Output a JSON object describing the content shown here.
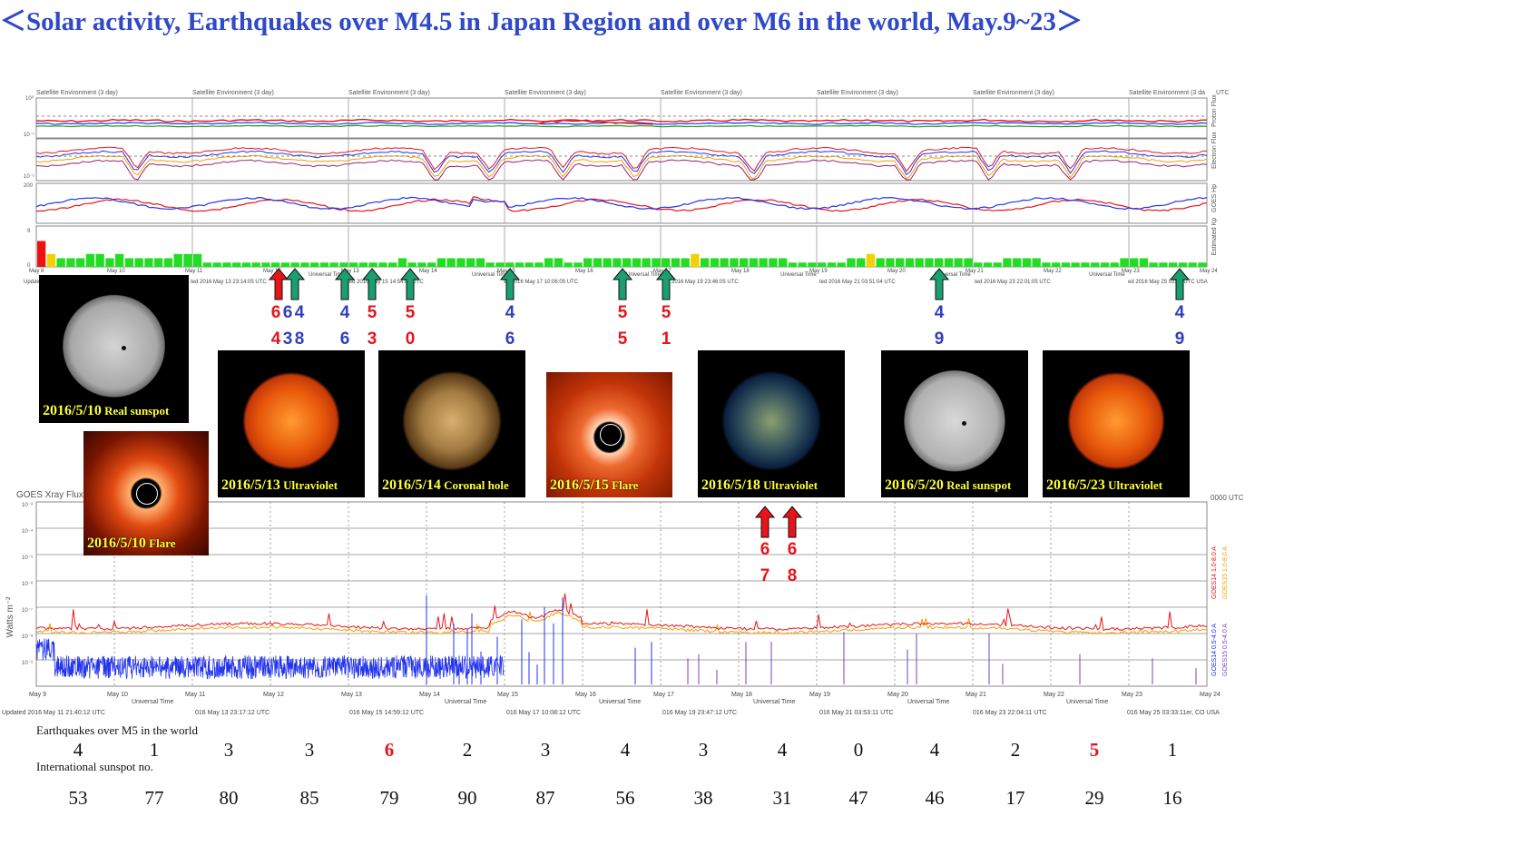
{
  "title": "＜Solar activity, Earthquakes over M4.5 in Japan Region and over M6 in the world, May.9~23＞",
  "colors": {
    "title": "#2f49c8",
    "red": "#e8141a",
    "green_arrow": "#1aa070",
    "kp_green": "#22dd22",
    "kp_yellow": "#f4d000",
    "kp_red": "#ee1111"
  },
  "top_panel": {
    "header_label": "Satellite Environment (3 day)",
    "header_label_last": "Satellite Environment (3 da",
    "header_utc": "UTC",
    "side_labels": [
      "Proton Flux",
      "Electron Flux",
      "GOES Hp",
      "Estimated Kp"
    ],
    "y_ticks": [
      "10⁰",
      "10⁻¹",
      "10⁻¹",
      "200",
      "9",
      "0"
    ],
    "date_ticks": [
      "May 9",
      "May 10",
      "May 11",
      "May 12",
      "May 13",
      "May 14",
      "May 15",
      "May 16",
      "May 17",
      "May 18",
      "May 19",
      "May 20",
      "May 21",
      "May 22",
      "May 23",
      "May 24"
    ],
    "universal_time": "Universal Time",
    "updated": [
      "Updated",
      "ted 2016 May 13 23:14:05 UTC",
      "ted 2016 May 15 14:54:05 UTC",
      "ed 2016 May 17 10:06:05 UTC",
      "ted 2016 May 19 23:46:05 UTC",
      "ted 2016 May 21 03:51:04 UTC",
      "ted 2016 May 23 22:01:05 UTC",
      "ed 2016 May 25 03:33 UTC USA"
    ]
  },
  "chart_data": [
    {
      "type": "bar",
      "name": "Estimated Kp",
      "ylim": [
        0,
        9
      ],
      "values": [
        6,
        3,
        2,
        2,
        2,
        3,
        3,
        2,
        3,
        2,
        2,
        2,
        2,
        2,
        3,
        3,
        3,
        1,
        1,
        1,
        1,
        1,
        1,
        1,
        1,
        1,
        1,
        1,
        1,
        1,
        1,
        1,
        1,
        1,
        1,
        1,
        1,
        2,
        1,
        1,
        1,
        2,
        2,
        2,
        2,
        2,
        1,
        1,
        1,
        1,
        1,
        1,
        2,
        2,
        1,
        1,
        2,
        2,
        2,
        2,
        2,
        2,
        2,
        2,
        2,
        2,
        2,
        3,
        2,
        2,
        2,
        2,
        2,
        2,
        2,
        2,
        2,
        1,
        1,
        1,
        1,
        1,
        1,
        2,
        2,
        3,
        2,
        2,
        2,
        2,
        2,
        2,
        2,
        2,
        2,
        2,
        1,
        1,
        1,
        2,
        2,
        2,
        2,
        1,
        1,
        1,
        1,
        1,
        1,
        1,
        1,
        2,
        2,
        2,
        1,
        1,
        1,
        1,
        1,
        1,
        1,
        2,
        2,
        1,
        1,
        1,
        1,
        2,
        3,
        5,
        2,
        2,
        2,
        2,
        2,
        2,
        2,
        2,
        2,
        1,
        1,
        1,
        1,
        1,
        1,
        1,
        1,
        1,
        1,
        1,
        1,
        2,
        1,
        1,
        1,
        1,
        1,
        1,
        1,
        1,
        1,
        1,
        1,
        1,
        1,
        1,
        1,
        1,
        1,
        1,
        1,
        1,
        1,
        1,
        1,
        1,
        1,
        1,
        1,
        1,
        1,
        1,
        1,
        1,
        1,
        1,
        1,
        1,
        1,
        1,
        1,
        1,
        1,
        1,
        1,
        1,
        1,
        1,
        1,
        1,
        1,
        1,
        1,
        1,
        1,
        1,
        1,
        1,
        1,
        1,
        1,
        1,
        1,
        1,
        1,
        1,
        1,
        1,
        1,
        1,
        1,
        1,
        1,
        1
      ]
    },
    {
      "type": "line",
      "name": "GOES Xray Flux",
      "ylabel": "Watts m⁻²",
      "y_ticks": [
        "10⁻³",
        "10⁻⁴",
        "10⁻⁵",
        "10⁻⁶",
        "10⁻⁷",
        "10⁻⁸",
        "10⁻⁹"
      ],
      "legend": [
        "GOES14 1.0-8.0 A",
        "GOES15 1.0-8.0 A",
        "GOES14 0.5-4.0 A",
        "GOES15 0.5-4.0 A"
      ],
      "series_colors": [
        "#e8141a",
        "#f4a000",
        "#2233ee",
        "#7a3fbf"
      ]
    },
    {
      "type": "table",
      "rows": [
        {
          "label": "Earthquakes over M5 in the world",
          "values": [
            "4",
            "1",
            "3",
            "3",
            "6",
            "2",
            "3",
            "4",
            "3",
            "4",
            "0",
            "4",
            "2",
            "5",
            "1"
          ],
          "highlight": [
            4,
            13
          ]
        },
        {
          "label": "International sunspot no.",
          "values": [
            "53",
            "77",
            "80",
            "85",
            "79",
            "90",
            "87",
            "56",
            "38",
            "31",
            "47",
            "46",
            "17",
            "29",
            "16"
          ]
        }
      ]
    }
  ],
  "xray_panel": {
    "header_left": "GOES Xray Flux",
    "header_utc": "0000 UTC",
    "date_ticks": [
      "May 9",
      "May 10",
      "May 11",
      "May 12",
      "May 13",
      "May 14",
      "May 15",
      "May 16",
      "May 17",
      "May 18",
      "May 19",
      "May 20",
      "May 21",
      "May 22",
      "May 23",
      "May 24"
    ],
    "universal_time": "Universal Time",
    "updated": [
      "Updated 2016 May 11 21:40:12 UTC",
      "016 May 13 23:17:12 UTC",
      "016 May 15 14:59:12 UTC",
      "016 May 17 10:08:12 UTC",
      "016 May 19 23:47:12 UTC",
      "016 May 21 03:53:11 UTC",
      "016 May 23 22:04:11 UTC",
      "016 May 25 03:33:11er, CO USA"
    ]
  },
  "thumbnails": [
    {
      "caption": "2016/5/10",
      "caption_small": "Real sunspot",
      "kind": "sunspot"
    },
    {
      "caption": "2016/5/10",
      "caption_small": "Flare",
      "kind": "flare"
    },
    {
      "caption": "2016/5/13",
      "caption_small": "Ultraviolet",
      "kind": "uv"
    },
    {
      "caption": "2016/5/14",
      "caption_small": "Coronal hole",
      "kind": "coronal"
    },
    {
      "caption": "2016/5/15",
      "caption_small": "Flare",
      "kind": "flare2"
    },
    {
      "caption": "2016/5/18",
      "caption_small": "Ultraviolet",
      "kind": "uv2"
    },
    {
      "caption": "2016/5/20",
      "caption_small": "Real sunspot",
      "kind": "sunspot2"
    },
    {
      "caption": "2016/5/23",
      "caption_small": "Ultraviolet",
      "kind": "uv"
    }
  ],
  "quake_markers": [
    {
      "x": 307,
      "color": "red",
      "top": "6",
      "bottom": "4"
    },
    {
      "x": 325,
      "color": "green",
      "top": "6",
      "bottom": "3"
    },
    {
      "x": 325,
      "color": "green",
      "top": "4",
      "bottom": "8"
    },
    {
      "x": 380,
      "color": "green",
      "top": "4",
      "bottom": "6"
    },
    {
      "x": 410,
      "color": "green",
      "top": "5",
      "bottom": "3"
    },
    {
      "x": 452,
      "color": "green",
      "top": "5",
      "bottom": "0"
    },
    {
      "x": 562,
      "color": "green",
      "top": "4",
      "bottom": "6"
    },
    {
      "x": 686,
      "color": "green",
      "top": "5",
      "bottom": "5"
    },
    {
      "x": 734,
      "color": "green",
      "top": "5",
      "bottom": "1"
    },
    {
      "x": 1035,
      "color": "green",
      "top": "4",
      "bottom": "9"
    },
    {
      "x": 1300,
      "color": "green",
      "top": "4",
      "bottom": "9"
    },
    {
      "x": 843,
      "color": "red2",
      "top": "6",
      "bottom": "7"
    },
    {
      "x": 873,
      "color": "red2",
      "top": "6",
      "bottom": "8"
    }
  ]
}
